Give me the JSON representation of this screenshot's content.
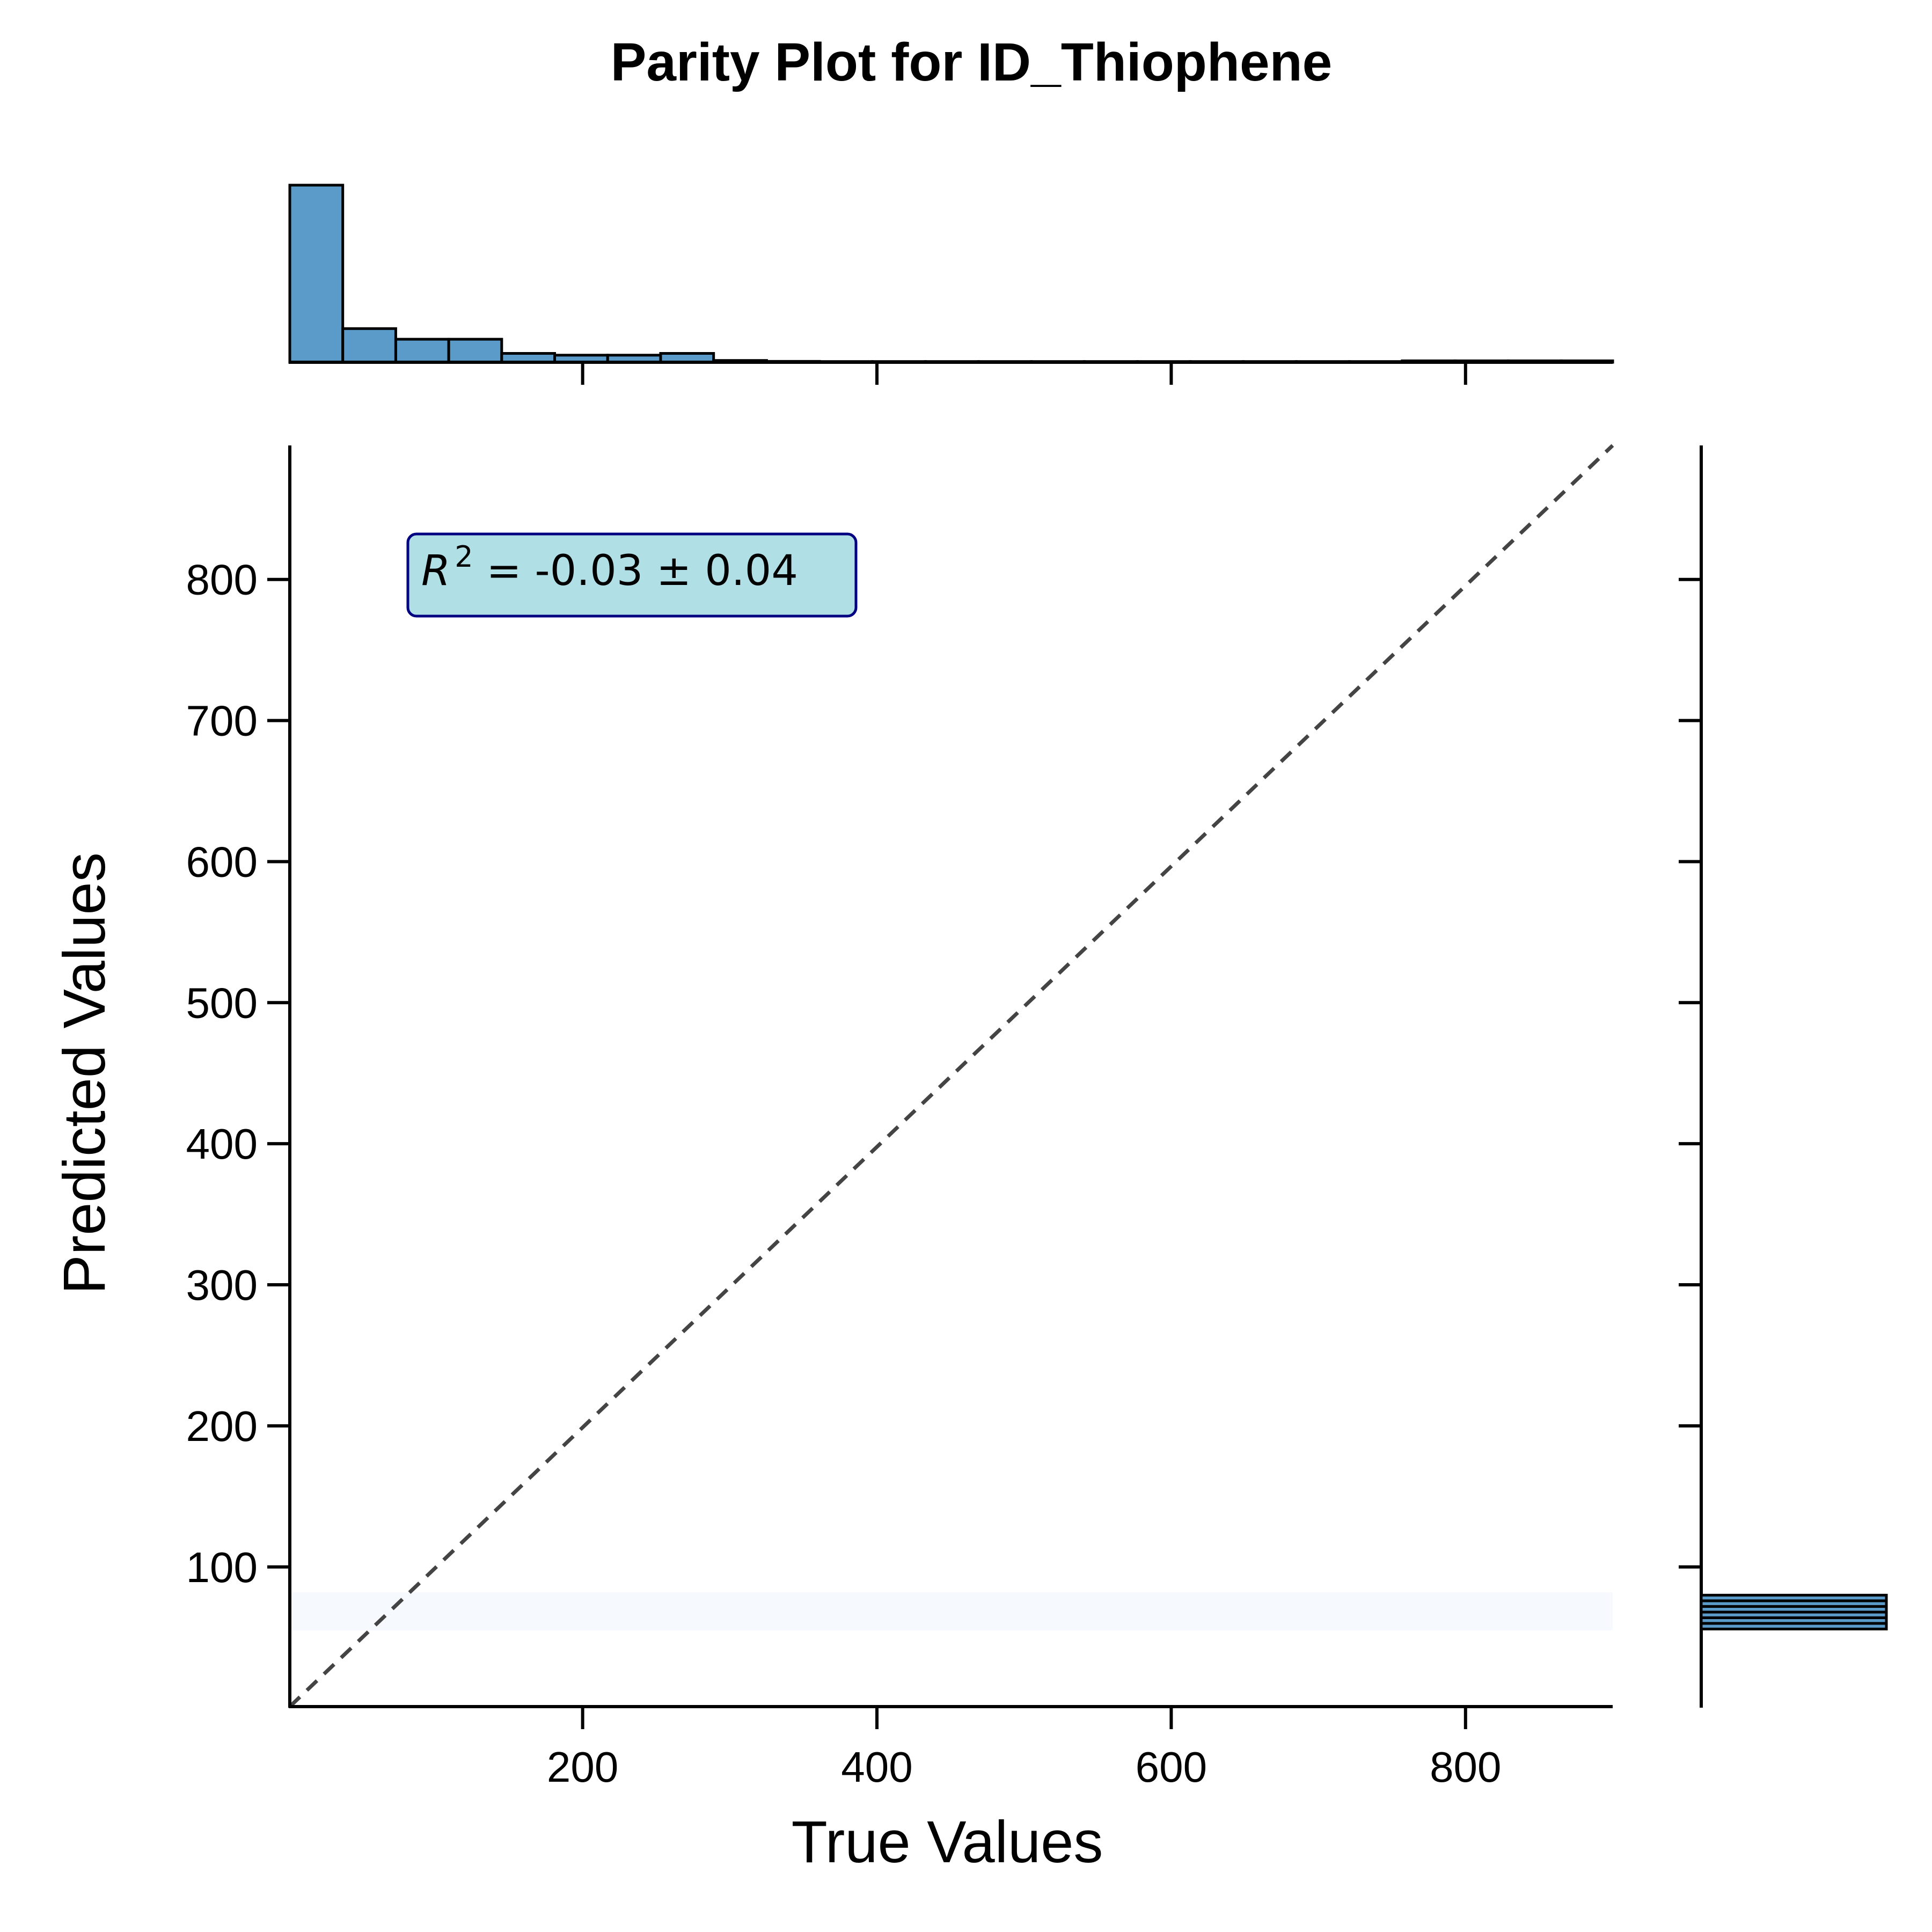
{
  "chart_data": {
    "type": "scatter",
    "title": "Parity Plot for ID_Thiophene",
    "xlabel": "True Values",
    "ylabel": "Predicted Values",
    "xlim": [
      1,
      900
    ],
    "ylim": [
      1,
      895
    ],
    "x_ticks": [
      200,
      400,
      600,
      800
    ],
    "y_ticks": [
      100,
      200,
      300,
      400,
      500,
      600,
      700,
      800
    ],
    "annotation": {
      "r2_symbol": "R",
      "r2_exp": "2",
      "r2_value": " = -0.03 ± 0.04"
    },
    "parity_line": {
      "from": [
        1,
        1
      ],
      "to": [
        900,
        895
      ],
      "style": "dashed"
    },
    "prediction_band": {
      "y_min": 55,
      "y_max": 82,
      "x_min": 1,
      "x_max": 900
    },
    "top_histogram": {
      "bin_edges": [
        1,
        37,
        73,
        109,
        145,
        181,
        217,
        253,
        289,
        325,
        361,
        397,
        433,
        469,
        505,
        541,
        577,
        613,
        649,
        685,
        721,
        757,
        793,
        829,
        865,
        900
      ],
      "counts": [
        100,
        19,
        13,
        13,
        5,
        4,
        4,
        5,
        1,
        0.5,
        0.4,
        0.4,
        0.4,
        0.4,
        0.4,
        0.4,
        0.4,
        0.4,
        0.4,
        0.4,
        0.4,
        0.8,
        0.8,
        0.8,
        0.8
      ]
    },
    "right_histogram": {
      "bins": [
        [
          56,
          60
        ],
        [
          60,
          64
        ],
        [
          64,
          68
        ],
        [
          68,
          72
        ],
        [
          72,
          76
        ],
        [
          76,
          80
        ]
      ],
      "counts": [
        100,
        100,
        100,
        100,
        100,
        100
      ]
    },
    "colors": {
      "hist_fill": "#5a9bc9",
      "annot_fill": "#b0e0e6",
      "annot_border": "#000080",
      "parity_line": "#444444",
      "band_fill": "#f6f9fe"
    }
  }
}
